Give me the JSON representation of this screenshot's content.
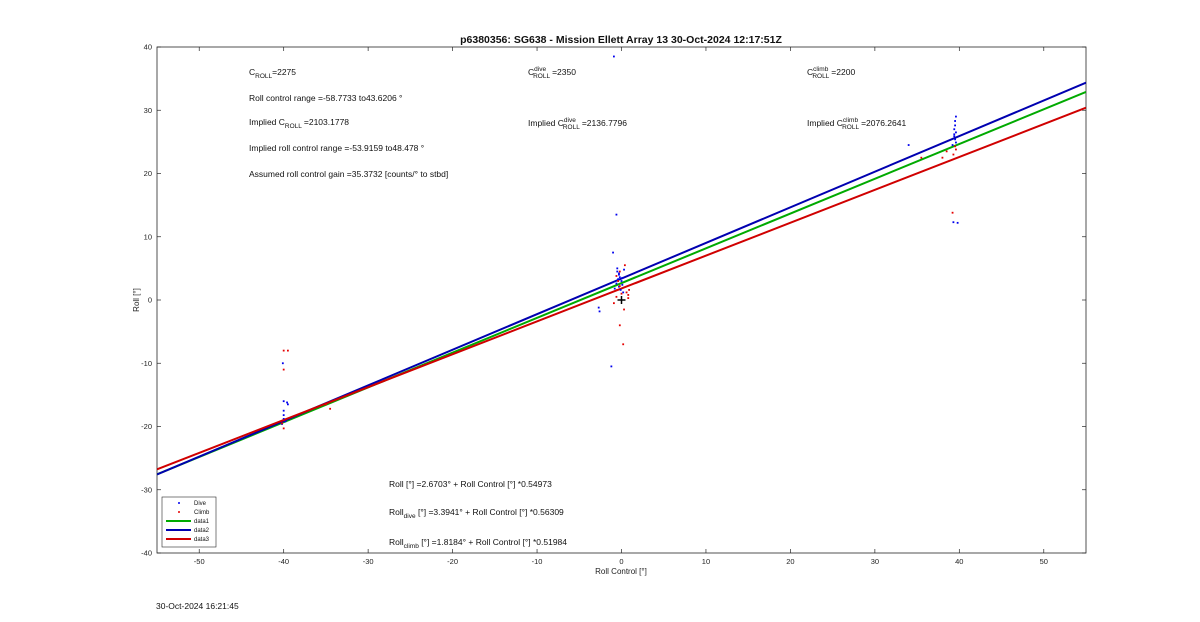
{
  "footer": {
    "timestamp": "30-Oct-2024 16:21:45"
  },
  "chart_data": {
    "type": "scatter",
    "title": "p6380356: SG638 - Mission Ellett Array 13 30-Oct-2024 12:17:51Z",
    "xlabel": "Roll Control [°]",
    "ylabel": "Roll [°]",
    "xlim": [
      -55,
      55
    ],
    "ylim": [
      -40,
      40
    ],
    "xticks": [
      -50,
      -40,
      -30,
      -20,
      -10,
      0,
      10,
      20,
      30,
      40,
      50
    ],
    "yticks": [
      -40,
      -30,
      -20,
      -10,
      0,
      10,
      20,
      30,
      40
    ],
    "grid": false,
    "legend_position": "bottom-left",
    "colors": {
      "dive": "#0000ee",
      "climb": "#e60000",
      "data1": "#00aa00",
      "data2": "#0000b0",
      "data3": "#d00000"
    },
    "series": [
      {
        "name": "Dive",
        "kind": "points",
        "color": "#0000ee",
        "points": [
          [
            -40,
            -17.5
          ],
          [
            -40,
            -18.2
          ],
          [
            -40,
            -18.8
          ],
          [
            -39.8,
            -19.2
          ],
          [
            -40,
            -16
          ],
          [
            -40.1,
            -10
          ],
          [
            -39.5,
            -16.5
          ],
          [
            -39.6,
            -16.2
          ],
          [
            -40.2,
            -19.6
          ],
          [
            -0.5,
            4.5
          ],
          [
            -0.3,
            4
          ],
          [
            -0.2,
            3.6
          ],
          [
            -0.4,
            3.3
          ],
          [
            0,
            3
          ],
          [
            -0.6,
            2.6
          ],
          [
            0.1,
            2.4
          ],
          [
            -0.3,
            2.1
          ],
          [
            -0.8,
            1.8
          ],
          [
            -0.1,
            1.6
          ],
          [
            0.2,
            1.2
          ],
          [
            -0.5,
            5
          ],
          [
            0.3,
            4.8
          ],
          [
            -1,
            7.5
          ],
          [
            -0.6,
            13.5
          ],
          [
            -1.2,
            -10.5
          ],
          [
            -0.9,
            38.5
          ],
          [
            -2.7,
            -1.2
          ],
          [
            -2.6,
            -1.8
          ],
          [
            0.1,
            3.5
          ],
          [
            -0.3,
            4.2
          ],
          [
            34,
            24.5
          ],
          [
            39.6,
            29
          ],
          [
            39.5,
            28.3
          ],
          [
            39.5,
            27.6
          ],
          [
            39.4,
            27
          ],
          [
            39.6,
            26.5
          ],
          [
            39.4,
            25.9
          ],
          [
            39.5,
            25.4
          ],
          [
            39.6,
            24.9
          ],
          [
            39.2,
            24.5
          ],
          [
            39.3,
            12.3
          ],
          [
            39.8,
            12.2
          ],
          [
            39.4,
            26.2
          ]
        ]
      },
      {
        "name": "Climb",
        "kind": "points",
        "color": "#e60000",
        "points": [
          [
            -40,
            -8
          ],
          [
            -39.5,
            -8
          ],
          [
            -40,
            -11
          ],
          [
            -40.2,
            -19.5
          ],
          [
            -40,
            -20.3
          ],
          [
            -40,
            -19
          ],
          [
            -35,
            -16.5
          ],
          [
            -34.5,
            -17.2
          ],
          [
            -0.6,
            3.8
          ],
          [
            -0.4,
            3
          ],
          [
            -0.2,
            2.2
          ],
          [
            -0.5,
            1.6
          ],
          [
            0,
            1
          ],
          [
            0.6,
            1.2
          ],
          [
            0.9,
            1.6
          ],
          [
            0.8,
            0.8
          ],
          [
            0.3,
            -1.5
          ],
          [
            -0.2,
            -4
          ],
          [
            0.2,
            -7
          ],
          [
            -0.6,
            0.5
          ],
          [
            -0.2,
            4.5
          ],
          [
            0.4,
            5.5
          ],
          [
            -0.9,
            -0.5
          ],
          [
            0.8,
            0.3
          ],
          [
            35.5,
            22.5
          ],
          [
            38,
            22.5
          ],
          [
            38.5,
            23.5
          ],
          [
            39.3,
            23
          ],
          [
            39.5,
            24.3
          ],
          [
            39.2,
            13.8
          ],
          [
            39.6,
            23.8
          ]
        ]
      },
      {
        "name": "data1",
        "kind": "line",
        "color": "#00aa00",
        "intercept": 2.6703,
        "slope": 0.54973
      },
      {
        "name": "data2",
        "kind": "line",
        "color": "#0000b0",
        "intercept": 3.3941,
        "slope": 0.56309
      },
      {
        "name": "data3",
        "kind": "line",
        "color": "#d00000",
        "intercept": 1.8184,
        "slope": 0.51984
      }
    ],
    "annotations": {
      "c_roll": {
        "main": "C",
        "sub": "ROLL",
        "rest": "=2275"
      },
      "roll_range": "Roll control range =-58.7733 to43.6206 °",
      "implied_c": {
        "pre": "Implied C",
        "sub": "ROLL",
        "rest": "=2103.1778"
      },
      "implied_range": "Implied roll control range =-53.9159 to48.478 °",
      "gain": "Assumed roll control gain =35.3732 [counts/° to stbd]",
      "c_dive": {
        "main": "C",
        "sup": "dive",
        "sub": "ROLL",
        "rest": "=2350"
      },
      "implied_dive": {
        "pre": "Implied C",
        "sup": "dive",
        "sub": "ROLL",
        "rest": "=2136.7796"
      },
      "c_climb": {
        "main": "C",
        "sup": "climb",
        "sub": "ROLL",
        "rest": "=2200"
      },
      "implied_climb": {
        "pre": "Implied C",
        "sup": "climb",
        "sub": "ROLL",
        "rest": "=2076.2641"
      },
      "eq_all": "Roll [°] =2.6703° + Roll Control [°] *0.54973",
      "eq_dive": {
        "main": "Roll",
        "sub": "dive",
        "rest": " [°] =3.3941° + Roll Control [°] *0.56309"
      },
      "eq_climb": {
        "main": "Roll",
        "sub": "climb",
        "rest": " [°] =1.8184° + Roll Control [°] *0.51984"
      }
    }
  }
}
